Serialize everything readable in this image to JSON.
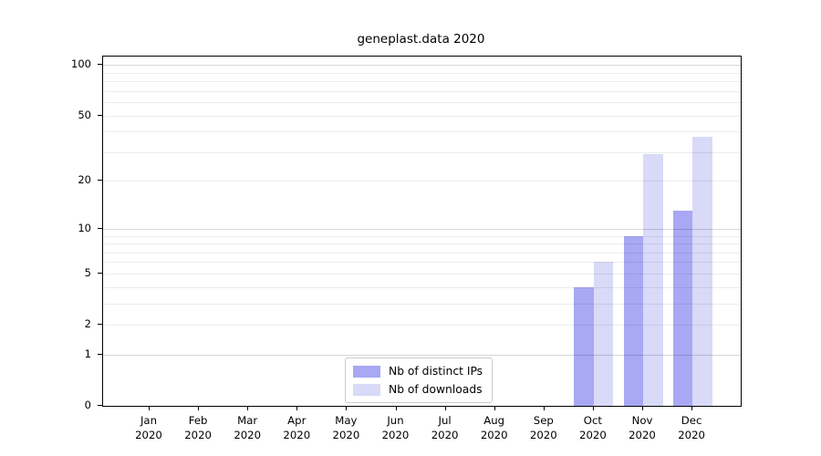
{
  "chart_data": {
    "type": "bar",
    "title": "geneplast.data 2020",
    "x_year": "2020",
    "categories": [
      "Jan",
      "Feb",
      "Mar",
      "Apr",
      "May",
      "Jun",
      "Jul",
      "Aug",
      "Sep",
      "Oct",
      "Nov",
      "Dec"
    ],
    "series": [
      {
        "name": "Nb of distinct IPs",
        "color": "#a8a8f4",
        "values": [
          0,
          0,
          0,
          0,
          0,
          0,
          0,
          0,
          0,
          4,
          9,
          13
        ]
      },
      {
        "name": "Nb of downloads",
        "color": "#d9d9f8",
        "values": [
          0,
          0,
          0,
          0,
          0,
          0,
          0,
          0,
          0,
          6,
          29,
          37
        ]
      }
    ],
    "y_axis": {
      "scale": "log1p",
      "tick_labels": [
        0,
        1,
        2,
        5,
        10,
        20,
        50,
        100
      ],
      "major_gridlines": [
        1,
        10,
        100
      ],
      "minor_gridlines": [
        2,
        3,
        4,
        5,
        6,
        7,
        8,
        9,
        20,
        30,
        40,
        50,
        60,
        70,
        80,
        90
      ],
      "ylim": [
        0,
        112
      ]
    },
    "grid": true,
    "legend_position": "bottom-center",
    "legend": [
      "Nb of distinct IPs",
      "Nb of downloads"
    ]
  },
  "colors": {
    "bar_distinct_ips": "#a8a8f4",
    "bar_downloads": "#d9d9f8",
    "axis": "#000000",
    "background": "#ffffff"
  }
}
